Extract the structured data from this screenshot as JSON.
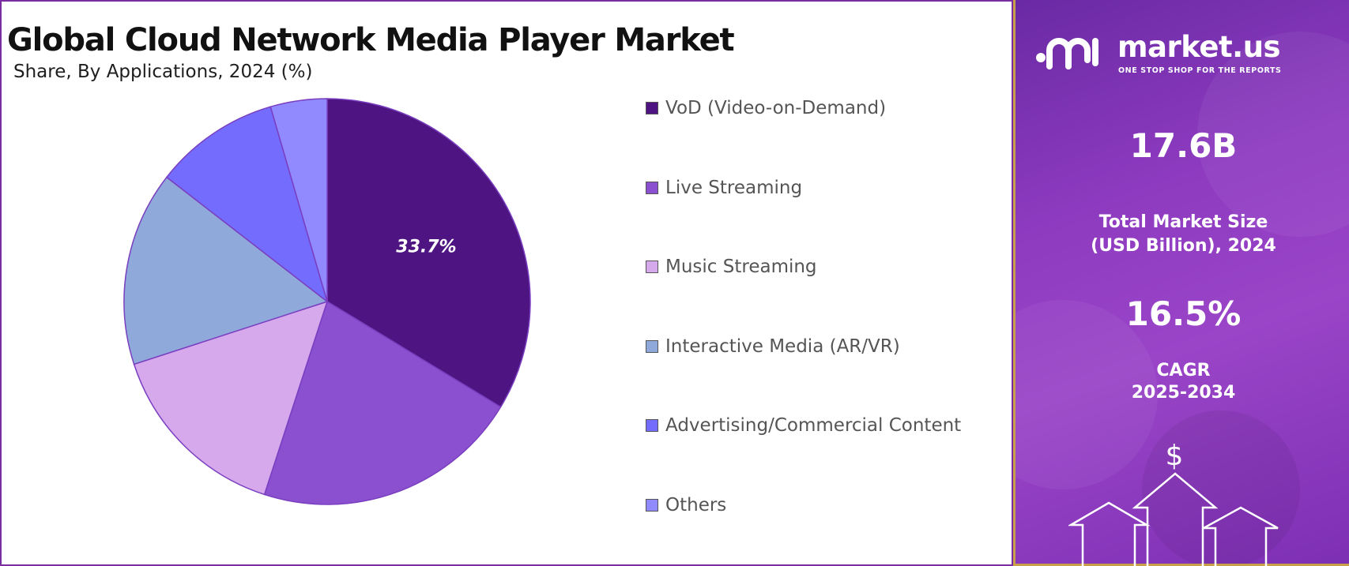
{
  "title": "Global Cloud Network Media Player Market",
  "subtitle": "Share, By Applications, 2024 (%)",
  "chart_data": {
    "type": "pie",
    "title": "Global Cloud Network Media Player Market",
    "subtitle": "Share, By Applications, 2024 (%)",
    "categories": [
      "VoD (Video-on-Demand)",
      "Live Streaming",
      "Music Streaming",
      "Interactive Media (AR/VR)",
      "Advertising/Commercial Content",
      "Others"
    ],
    "values": [
      33.7,
      21.3,
      15.0,
      15.5,
      10.0,
      4.5
    ],
    "colors": [
      "#4e1582",
      "#8a50cf",
      "#d6a8ec",
      "#8fa9db",
      "#746cfc",
      "#908afe"
    ],
    "data_labels": [
      "33.7%",
      "",
      "",
      "",
      "",
      ""
    ],
    "legend_position": "right"
  },
  "brand": {
    "name": "market.us",
    "tagline": "ONE STOP SHOP FOR THE REPORTS"
  },
  "stats": {
    "market_size": "17.6B",
    "market_size_label_line1": "Total Market Size",
    "market_size_label_line2": "(USD Billion), 2024",
    "cagr": "16.5%",
    "cagr_label_line1": "CAGR",
    "cagr_label_line2": "2025-2034"
  },
  "icons": {
    "currency": "$",
    "brand_logo": "market-us-logo-icon",
    "growth": "growth-arrows-icon"
  },
  "panel_colors": {
    "info_panel_start": "#6a2aa4",
    "info_panel_end": "#9a45c8",
    "border_accent": "#c9a04a"
  }
}
